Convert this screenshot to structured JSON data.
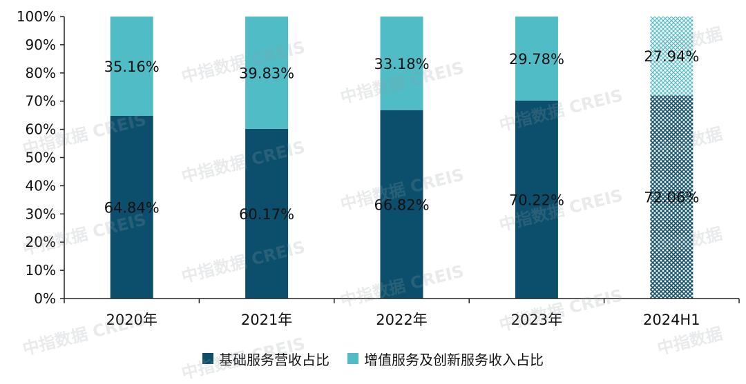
{
  "chart_data": {
    "type": "bar",
    "stacked": true,
    "categories": [
      "2020年",
      "2021年",
      "2022年",
      "2023年",
      "2024H1"
    ],
    "series": [
      {
        "name": "基础服务营收占比",
        "values": [
          64.84,
          60.17,
          66.82,
          70.22,
          72.06
        ],
        "labels": [
          "64.84%",
          "60.17%",
          "66.82%",
          "70.22%",
          "72.06%"
        ],
        "color": "#0b4f6c"
      },
      {
        "name": "增值服务及创新服务收入占比",
        "values": [
          35.16,
          39.83,
          33.18,
          29.78,
          27.94
        ],
        "labels": [
          "35.16%",
          "39.83%",
          "33.18%",
          "29.78%",
          "27.94%"
        ],
        "color": "#4fbcc6"
      }
    ],
    "hatched_categories": [
      "2024H1"
    ],
    "ylim": [
      0,
      100
    ],
    "yticks": [
      "0%",
      "10%",
      "20%",
      "30%",
      "40%",
      "50%",
      "60%",
      "70%",
      "80%",
      "90%",
      "100%"
    ],
    "legend_position": "bottom",
    "grid": false
  },
  "watermark": {
    "text": "中指数据 CREIS",
    "short_text": "中指数据"
  }
}
